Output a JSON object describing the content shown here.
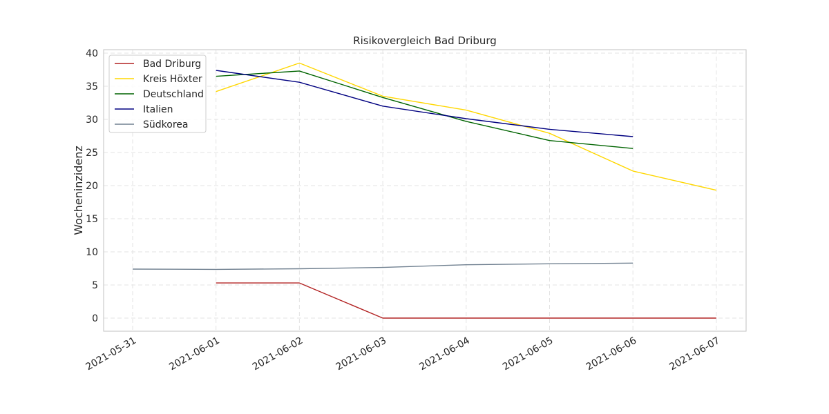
{
  "chart_data": {
    "type": "line",
    "title": "Risikovergleich Bad Driburg",
    "xlabel": "",
    "ylabel": "Wocheninzidenz",
    "x": [
      "2021-05-31",
      "2021-06-01",
      "2021-06-02",
      "2021-06-03",
      "2021-06-04",
      "2021-06-05",
      "2021-06-06",
      "2021-06-07"
    ],
    "xlim": [
      "2021-05-31",
      "2021-06-07"
    ],
    "ylim": [
      -2,
      40
    ],
    "yticks": [
      0,
      5,
      10,
      15,
      20,
      25,
      30,
      35,
      40
    ],
    "grid": true,
    "legend_position": "top-left",
    "series": [
      {
        "name": "Bad Driburg",
        "color": "#b22222",
        "values": [
          null,
          5.3,
          5.3,
          0,
          0,
          0,
          0,
          0
        ]
      },
      {
        "name": "Kreis Höxter",
        "color": "#ffd700",
        "values": [
          null,
          34.2,
          38.5,
          33.5,
          31.4,
          27.9,
          22.2,
          19.3
        ]
      },
      {
        "name": "Deutschland",
        "color": "#006400",
        "values": [
          null,
          36.5,
          37.3,
          33.3,
          29.7,
          26.8,
          25.6,
          null
        ]
      },
      {
        "name": "Italien",
        "color": "#000080",
        "values": [
          null,
          37.4,
          35.6,
          32.0,
          30.1,
          28.5,
          27.4,
          null
        ]
      },
      {
        "name": "Südkorea",
        "color": "#708090",
        "values": [
          7.4,
          7.35,
          7.45,
          7.65,
          8.05,
          8.2,
          8.3,
          null
        ]
      }
    ]
  }
}
